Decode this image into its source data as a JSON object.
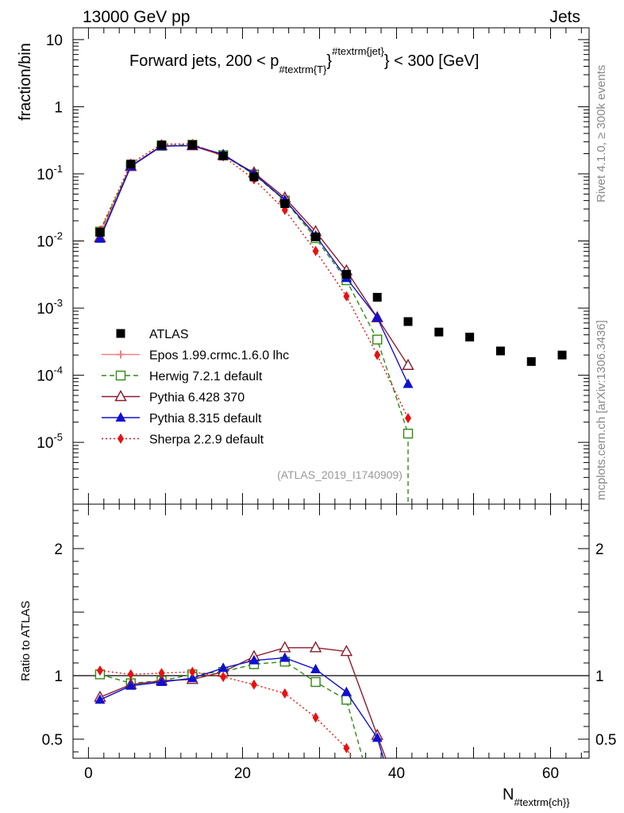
{
  "header": {
    "left": "13000 GeV pp",
    "right": "Jets"
  },
  "side": {
    "rivet": "Rivet 4.1.0, ≥ 300k events",
    "mcplots": "mcplots.cern.ch [arXiv:1306.3436]"
  },
  "analysis_id": "(ATLAS_2019_I1740909)",
  "title": {
    "main": "Forward jets, 200 < p",
    "sub": "#textrm{T}",
    "sup": "#textrm{jet}",
    "tail": "} < 300 [GeV]"
  },
  "xlabel": {
    "main": "N",
    "sub": "#textrm{ch}}"
  },
  "colors": {
    "atlas": "#000000",
    "epos": "#f08080",
    "herwig": "#2e8b12",
    "pythia6": "#8b1a2b",
    "pythia8": "#1010d0",
    "sherpa": "#e81010"
  },
  "chart_data": [
    {
      "type": "scatter",
      "panel": "main",
      "ylabel": "fraction/bin",
      "yscale": "log",
      "xlim": [
        -2,
        65
      ],
      "ylim": [
        1.2e-06,
        15
      ],
      "y_ticks": [
        {
          "value": 10,
          "label": "10"
        },
        {
          "value": 1,
          "label": "1"
        },
        {
          "value": 0.1,
          "label": "10^-1"
        },
        {
          "value": 0.01,
          "label": "10^-2"
        },
        {
          "value": 0.001,
          "label": "10^-3"
        },
        {
          "value": 0.0001,
          "label": "10^-4"
        },
        {
          "value": 1e-05,
          "label": "10^-5"
        }
      ],
      "legend_position": "lower-left",
      "series": [
        {
          "key": "atlas",
          "name": "ATLAS",
          "style": "square-solid",
          "line": "none",
          "x": [
            1.5,
            5.5,
            9.5,
            13.5,
            17.5,
            21.5,
            25.5,
            29.5,
            33.5,
            37.5,
            41.5,
            45.5,
            49.5,
            53.5,
            57.5,
            61.5
          ],
          "y": [
            0.0135,
            0.14,
            0.27,
            0.27,
            0.185,
            0.09,
            0.036,
            0.0115,
            0.0032,
            0.00145,
            0.00063,
            0.00044,
            0.00037,
            0.00023,
            0.00016,
            0.0002
          ]
        },
        {
          "key": "epos",
          "name": "Epos 1.99.crmc.1.6.0 lhc",
          "style": "cross",
          "line": "solid",
          "x": [
            1.5,
            5.5,
            9.5,
            13.5,
            17.5,
            21.5,
            25.5,
            29.5
          ],
          "y": [
            0.0125,
            0.132,
            0.262,
            0.262,
            0.19,
            0.1,
            0.04,
            0.0125
          ]
        },
        {
          "key": "herwig",
          "name": "Herwig 7.2.1 default",
          "style": "square-open",
          "line": "dashed",
          "x": [
            1.5,
            5.5,
            9.5,
            13.5,
            17.5,
            21.5,
            25.5,
            29.5,
            33.5,
            37.5,
            41.5
          ],
          "y": [
            0.0138,
            0.132,
            0.262,
            0.272,
            0.19,
            0.098,
            0.04,
            0.011,
            0.0026,
            0.00034,
            1.35e-05
          ],
          "drop_to": 41.5
        },
        {
          "key": "pythia6",
          "name": "Pythia 6.428 370",
          "style": "triangle-open",
          "line": "solid",
          "x": [
            1.5,
            5.5,
            9.5,
            13.5,
            17.5,
            21.5,
            25.5,
            29.5,
            33.5,
            37.5,
            41.5
          ],
          "y": [
            0.0112,
            0.129,
            0.262,
            0.262,
            0.188,
            0.104,
            0.044,
            0.0138,
            0.0036,
            0.00072,
            0.00014
          ]
        },
        {
          "key": "pythia8",
          "name": "Pythia 8.315 default",
          "style": "triangle-solid",
          "line": "solid",
          "x": [
            1.5,
            5.5,
            9.5,
            13.5,
            17.5,
            21.5,
            25.5,
            29.5,
            33.5,
            37.5,
            41.5
          ],
          "y": [
            0.0108,
            0.129,
            0.258,
            0.264,
            0.195,
            0.1,
            0.041,
            0.012,
            0.0028,
            0.00072,
            7.4e-05
          ]
        },
        {
          "key": "sherpa",
          "name": "Sherpa 2.2.9 default",
          "style": "diamond-solid",
          "line": "dotted",
          "x": [
            1.5,
            5.5,
            9.5,
            13.5,
            17.5,
            21.5,
            25.5,
            29.5,
            33.5,
            37.5,
            41.5
          ],
          "y": [
            0.0143,
            0.142,
            0.277,
            0.28,
            0.182,
            0.083,
            0.029,
            0.0071,
            0.0015,
            0.0002,
            2.3e-05
          ]
        }
      ]
    },
    {
      "type": "line",
      "panel": "ratio",
      "ylabel": "Ratio to ATLAS",
      "yscale": "linear",
      "xlim": [
        -2,
        65
      ],
      "ylim": [
        0.35,
        2.35
      ],
      "y_ticks": [
        {
          "value": 0.5,
          "label": "0.5"
        },
        {
          "value": 1,
          "label": "1"
        },
        {
          "value": 2,
          "label": "2"
        }
      ],
      "x_ticks": [
        0,
        20,
        40,
        60
      ],
      "reference_line": 1,
      "series": [
        {
          "key": "herwig",
          "name": "Herwig 7.2.1 default",
          "style": "square-open",
          "line": "dashed",
          "x": [
            1.5,
            5.5,
            9.5,
            13.5,
            17.5,
            21.5,
            25.5,
            29.5,
            33.5,
            35.6
          ],
          "y": [
            1.01,
            0.94,
            0.96,
            1.01,
            1.03,
            1.09,
            1.11,
            0.95,
            0.81,
            0.35
          ]
        },
        {
          "key": "pythia6",
          "name": "Pythia 6.428 370",
          "style": "triangle-open",
          "line": "solid",
          "x": [
            1.5,
            5.5,
            9.5,
            13.5,
            17.5,
            21.5,
            25.5,
            29.5,
            33.5,
            37.5,
            38.6
          ],
          "y": [
            0.83,
            0.93,
            0.96,
            0.97,
            1.03,
            1.15,
            1.22,
            1.22,
            1.19,
            0.53,
            0.35
          ]
        },
        {
          "key": "pythia8",
          "name": "Pythia 8.315 default",
          "style": "triangle-solid",
          "line": "solid",
          "x": [
            1.5,
            5.5,
            9.5,
            13.5,
            17.5,
            21.5,
            25.5,
            29.5,
            33.5,
            37.5,
            38.3
          ],
          "y": [
            0.81,
            0.92,
            0.95,
            0.98,
            1.06,
            1.12,
            1.14,
            1.05,
            0.87,
            0.51,
            0.35
          ]
        },
        {
          "key": "sherpa",
          "name": "Sherpa 2.2.9 default",
          "style": "diamond-solid",
          "line": "dotted",
          "x": [
            1.5,
            5.5,
            9.5,
            13.5,
            17.5,
            21.5,
            25.5,
            29.5,
            33.5,
            34.2
          ],
          "y": [
            1.04,
            1.01,
            1.02,
            1.03,
            0.99,
            0.93,
            0.86,
            0.67,
            0.43,
            0.35
          ]
        }
      ]
    }
  ]
}
